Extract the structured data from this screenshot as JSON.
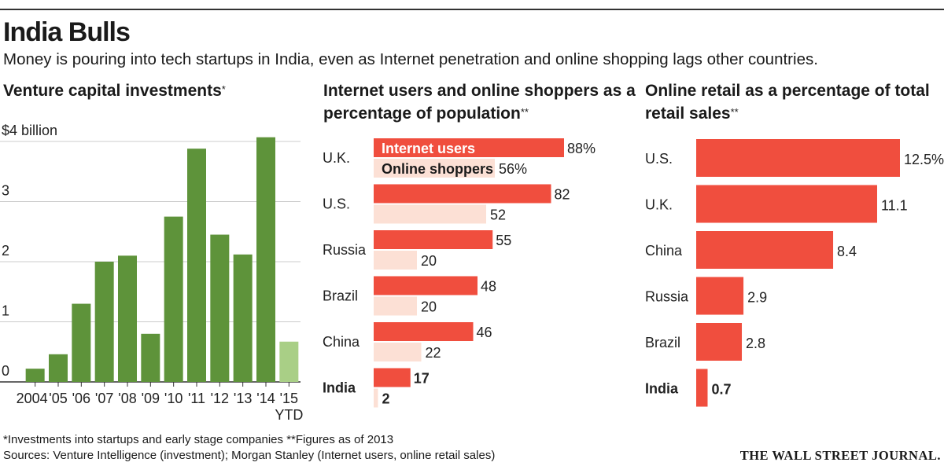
{
  "header": {
    "title": "India Bulls",
    "subtitle": "Money is pouring into tech startups in India, even as Internet penetration and online shopping lags other countries."
  },
  "colors": {
    "vc_bar": "#5e933a",
    "vc_bar_ytd": "#a9cf86",
    "internet_users": "#f04e3e",
    "online_shoppers": "#fce0d5",
    "retail_bar": "#f04e3e",
    "grid": "#cccccc"
  },
  "chart_data": [
    {
      "type": "bar",
      "title": "Venture capital investments",
      "title_mark": "*",
      "categories": [
        "2004",
        "'05",
        "'06",
        "'07",
        "'08",
        "'09",
        "'10",
        "'11",
        "'12",
        "'13",
        "'14",
        "'15"
      ],
      "category_note": "YTD",
      "values": [
        0.22,
        0.46,
        1.3,
        2.0,
        2.1,
        0.8,
        2.75,
        3.88,
        2.45,
        2.12,
        4.07,
        0.67
      ],
      "highlight_last": true,
      "ylim": [
        0,
        4
      ],
      "yticks": [
        "0",
        "1",
        "2",
        "3",
        "$4 billion"
      ],
      "grid": true
    },
    {
      "type": "bar",
      "orientation": "horizontal",
      "title": "Internet users and online shoppers as a percentage of population",
      "title_mark": "**",
      "categories": [
        "U.K.",
        "U.S.",
        "Russia",
        "Brazil",
        "China",
        "India"
      ],
      "bold_category": "India",
      "series": [
        {
          "name": "Internet users",
          "values": [
            88,
            82,
            55,
            48,
            46,
            17
          ]
        },
        {
          "name": "Online shoppers",
          "values": [
            56,
            52,
            20,
            20,
            22,
            2
          ]
        }
      ],
      "labels": [
        [
          "88%",
          "82",
          "55",
          "48",
          "46",
          "17"
        ],
        [
          "56%",
          "52",
          "20",
          "20",
          "22",
          "2"
        ]
      ],
      "xlim": [
        0,
        100
      ]
    },
    {
      "type": "bar",
      "orientation": "horizontal",
      "title": "Online retail as a percentage of total retail sales",
      "title_mark": "**",
      "categories": [
        "U.S.",
        "U.K.",
        "China",
        "Russia",
        "Brazil",
        "India"
      ],
      "bold_category": "India",
      "values": [
        12.5,
        11.1,
        8.4,
        2.9,
        2.8,
        0.7
      ],
      "labels": [
        "12.5%",
        "11.1",
        "8.4",
        "2.9",
        "2.8",
        "0.7"
      ],
      "xlim": [
        0,
        13.5
      ]
    }
  ],
  "footer": {
    "note": "*Investments into startups and early stage companies   **Figures as of 2013",
    "sources": "Sources: Venture Intelligence (investment); Morgan Stanley (Internet users, online retail sales)",
    "brand": "THE WALL STREET JOURNAL."
  }
}
